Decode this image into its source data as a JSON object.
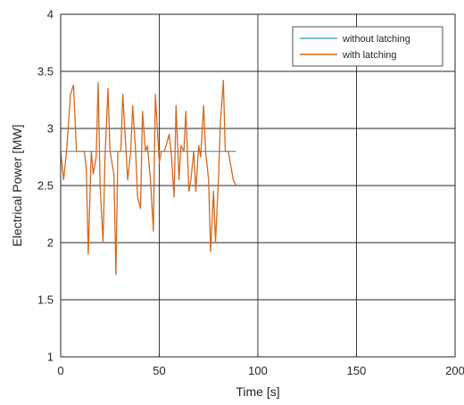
{
  "chart_data": {
    "type": "line",
    "title": "",
    "xlabel": "Time [s]",
    "ylabel": "Electrical Power [MW]",
    "xlim": [
      0,
      200
    ],
    "ylim": [
      1,
      4
    ],
    "xticks": [
      0,
      50,
      100,
      150,
      200
    ],
    "xtick_labels": [
      "0",
      "50",
      "100",
      "150",
      "200"
    ],
    "yticks": [
      1,
      1.5,
      2,
      2.5,
      3,
      3.5,
      4
    ],
    "ytick_labels": [
      "1",
      "1.5",
      "2",
      "2.5",
      "3",
      "3.5",
      "4"
    ],
    "grid": true,
    "legend_position": "top-right",
    "colors": {
      "without_latching": "#4da6c8",
      "with_latching": "#d2691e"
    },
    "series": [
      {
        "name": "without latching",
        "x": [
          0,
          89
        ],
        "y": [
          2.8,
          2.8
        ]
      },
      {
        "name": "with latching",
        "x": [
          0,
          1.5,
          3,
          5,
          6.5,
          8,
          10,
          12,
          13,
          14,
          15.5,
          16.5,
          18,
          19,
          20,
          21.5,
          22.5,
          24,
          25,
          27,
          28,
          29,
          30.5,
          31.5,
          33,
          34,
          35.5,
          36.5,
          38,
          39,
          40.5,
          41.5,
          43,
          44,
          45.5,
          47,
          48,
          50,
          51,
          52.5,
          53.5,
          55,
          56,
          57.5,
          58.5,
          60,
          61,
          62.5,
          63.5,
          65,
          66,
          67.5,
          68.5,
          70,
          71,
          72.5,
          73.5,
          75,
          76,
          77.5,
          78.5,
          80,
          81,
          82.5,
          83.5,
          85,
          86,
          87.5,
          89
        ],
        "y": [
          2.8,
          2.55,
          2.8,
          3.3,
          3.38,
          2.8,
          2.8,
          2.8,
          2.65,
          1.9,
          2.8,
          2.6,
          2.75,
          3.4,
          2.5,
          2.0,
          2.75,
          3.35,
          2.8,
          2.6,
          1.72,
          2.8,
          2.8,
          3.3,
          2.85,
          2.55,
          2.8,
          3.2,
          2.8,
          2.4,
          2.3,
          3.15,
          2.8,
          2.85,
          2.55,
          2.1,
          3.3,
          2.7,
          2.8,
          2.8,
          2.85,
          2.95,
          2.8,
          2.4,
          3.2,
          2.55,
          2.85,
          2.8,
          3.15,
          2.45,
          2.55,
          2.8,
          2.45,
          2.85,
          2.75,
          3.2,
          2.8,
          2.55,
          1.92,
          2.45,
          2.0,
          2.55,
          3.05,
          3.42,
          2.8,
          2.8,
          2.7,
          2.55,
          2.5
        ]
      }
    ]
  }
}
